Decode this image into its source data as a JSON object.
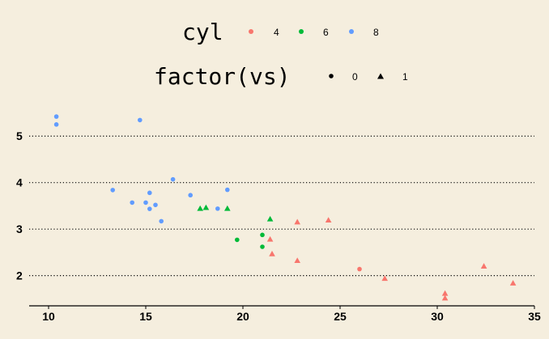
{
  "chart_data": {
    "type": "scatter",
    "title": "",
    "xlabel": "",
    "ylabel": "",
    "xlim": [
      9.0,
      35.0
    ],
    "ylim": [
      1.35,
      5.7
    ],
    "x_ticks": [
      10,
      15,
      20,
      25,
      30,
      35
    ],
    "y_ticks": [
      2,
      3,
      4,
      5
    ],
    "y_grid": "dotted",
    "legend": {
      "placement": "top",
      "color": {
        "title": "cyl",
        "entries": [
          {
            "label": "4",
            "color": "#F8766D"
          },
          {
            "label": "6",
            "color": "#00BA38"
          },
          {
            "label": "8",
            "color": "#619CFF"
          }
        ]
      },
      "shape": {
        "title": "factor(vs)",
        "entries": [
          {
            "label": "0",
            "shape": "circle"
          },
          {
            "label": "1",
            "shape": "triangle"
          }
        ]
      }
    },
    "points": [
      {
        "x": 10.4,
        "y": 5.42,
        "cyl": "8",
        "vs": "0"
      },
      {
        "x": 10.4,
        "y": 5.25,
        "cyl": "8",
        "vs": "0"
      },
      {
        "x": 14.7,
        "y": 5.345,
        "cyl": "8",
        "vs": "0"
      },
      {
        "x": 16.4,
        "y": 4.07,
        "cyl": "8",
        "vs": "0"
      },
      {
        "x": 13.3,
        "y": 3.84,
        "cyl": "8",
        "vs": "0"
      },
      {
        "x": 19.2,
        "y": 3.845,
        "cyl": "8",
        "vs": "0"
      },
      {
        "x": 15.2,
        "y": 3.78,
        "cyl": "8",
        "vs": "0"
      },
      {
        "x": 17.3,
        "y": 3.73,
        "cyl": "8",
        "vs": "0"
      },
      {
        "x": 14.3,
        "y": 3.57,
        "cyl": "8",
        "vs": "0"
      },
      {
        "x": 15.0,
        "y": 3.57,
        "cyl": "8",
        "vs": "0"
      },
      {
        "x": 15.5,
        "y": 3.52,
        "cyl": "8",
        "vs": "0"
      },
      {
        "x": 15.2,
        "y": 3.435,
        "cyl": "8",
        "vs": "0"
      },
      {
        "x": 18.7,
        "y": 3.44,
        "cyl": "8",
        "vs": "0"
      },
      {
        "x": 15.8,
        "y": 3.17,
        "cyl": "8",
        "vs": "0"
      },
      {
        "x": 19.7,
        "y": 2.77,
        "cyl": "6",
        "vs": "0"
      },
      {
        "x": 21.0,
        "y": 2.875,
        "cyl": "6",
        "vs": "0"
      },
      {
        "x": 21.0,
        "y": 2.62,
        "cyl": "6",
        "vs": "0"
      },
      {
        "x": 17.8,
        "y": 3.44,
        "cyl": "6",
        "vs": "1"
      },
      {
        "x": 18.1,
        "y": 3.46,
        "cyl": "6",
        "vs": "1"
      },
      {
        "x": 19.2,
        "y": 3.44,
        "cyl": "6",
        "vs": "1"
      },
      {
        "x": 21.4,
        "y": 3.215,
        "cyl": "6",
        "vs": "1"
      },
      {
        "x": 26.0,
        "y": 2.14,
        "cyl": "4",
        "vs": "0"
      },
      {
        "x": 24.4,
        "y": 3.19,
        "cyl": "4",
        "vs": "1"
      },
      {
        "x": 22.8,
        "y": 3.15,
        "cyl": "4",
        "vs": "1"
      },
      {
        "x": 21.4,
        "y": 2.78,
        "cyl": "4",
        "vs": "1"
      },
      {
        "x": 21.5,
        "y": 2.465,
        "cyl": "4",
        "vs": "1"
      },
      {
        "x": 22.8,
        "y": 2.32,
        "cyl": "4",
        "vs": "1"
      },
      {
        "x": 32.4,
        "y": 2.2,
        "cyl": "4",
        "vs": "1"
      },
      {
        "x": 27.3,
        "y": 1.935,
        "cyl": "4",
        "vs": "1"
      },
      {
        "x": 33.9,
        "y": 1.835,
        "cyl": "4",
        "vs": "1"
      },
      {
        "x": 30.4,
        "y": 1.615,
        "cyl": "4",
        "vs": "1"
      },
      {
        "x": 30.4,
        "y": 1.513,
        "cyl": "4",
        "vs": "1"
      }
    ]
  }
}
